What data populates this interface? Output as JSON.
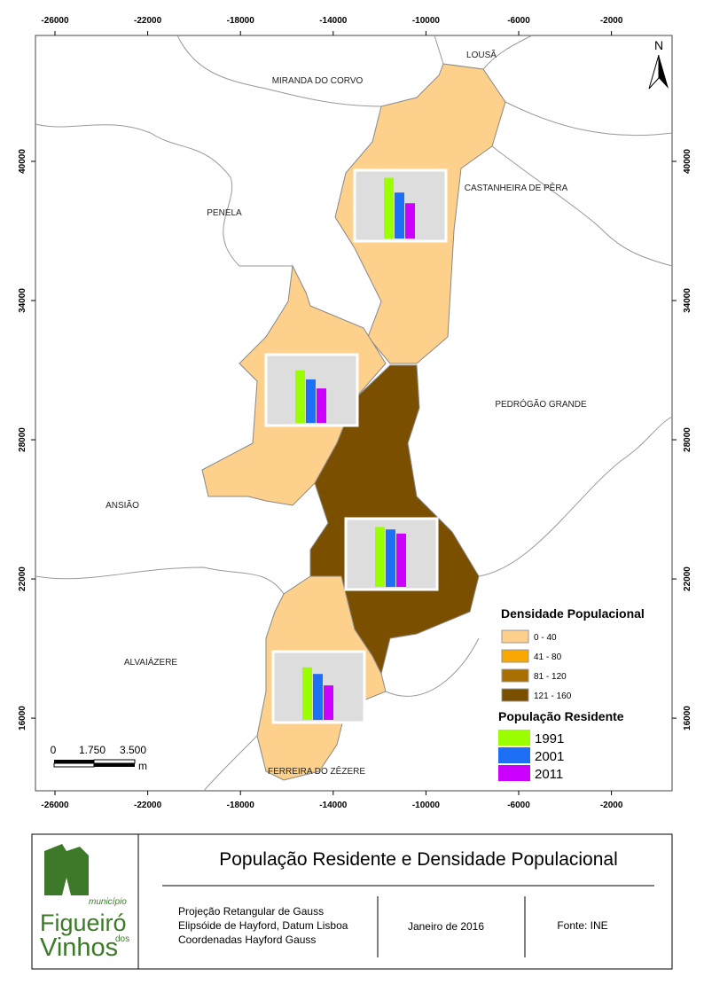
{
  "map": {
    "xlim": [
      -26841,
      615
    ],
    "ylim": [
      12870,
      45426
    ],
    "xticks": [
      -26000,
      -22000,
      -18000,
      -14000,
      -10000,
      -6000,
      -2000
    ],
    "yticks": [
      40000,
      34000,
      28000,
      22000,
      16000
    ],
    "north": "N",
    "places": [
      "LOUSÃ",
      "MIRANDA DO CORVO",
      "CASTANHEIRA DE PÊRA",
      "PENELA",
      "PEDRÓGÃO GRANDE",
      "ANSIÃO",
      "ALVAIÁZERE",
      "FERREIRA DO ZÊZERE"
    ],
    "scale": {
      "labels": [
        "0",
        "1.750",
        "3.500"
      ],
      "unit": "m"
    }
  },
  "legend": {
    "density_title": "Densidade Populacional",
    "density_classes": [
      {
        "label": "0 - 40",
        "color": "#fdd08c"
      },
      {
        "label": "41 - 80",
        "color": "#f8a800"
      },
      {
        "label": "81 - 120",
        "color": "#a86f00"
      },
      {
        "label": "121 - 160",
        "color": "#7a5000"
      }
    ],
    "population_title": "População Residente",
    "series": [
      {
        "name": "1991",
        "color": "#9cff00"
      },
      {
        "name": "2001",
        "color": "#1d6ff5"
      },
      {
        "name": "2011",
        "color": "#cc00ff"
      }
    ]
  },
  "population_charts": {
    "ylim": [
      0,
      80
    ],
    "charts": [
      {
        "values": [
          74,
          56,
          43
        ]
      },
      {
        "values": [
          64,
          53,
          42
        ]
      },
      {
        "values": [
          73,
          70,
          65
        ]
      },
      {
        "values": [
          64,
          56,
          42
        ]
      }
    ]
  },
  "footer": {
    "title": "População Residente e Densidade Populacional",
    "logo": {
      "small": "município",
      "name1": "Figueiró",
      "dos": "dos",
      "name2": "Vinhos"
    },
    "projection": [
      "Projeção Retangular de Gauss",
      "Elipsóide de Hayford, Datum Lisboa",
      "Coordenadas Hayford Gauss"
    ],
    "date": "Janeiro de 2016",
    "source": "Fonte: INE"
  }
}
